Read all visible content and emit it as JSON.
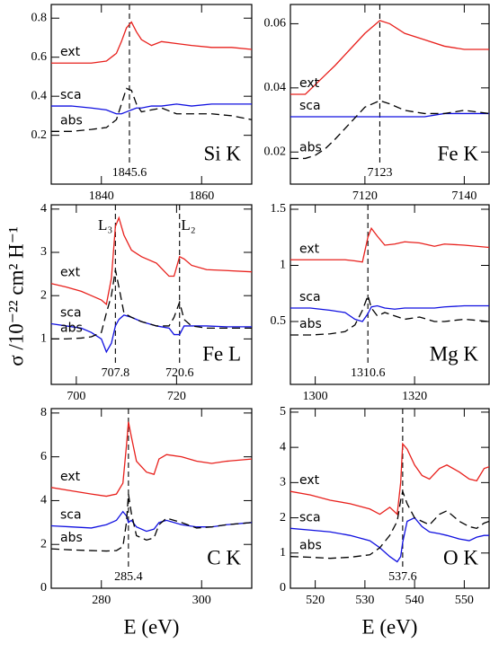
{
  "ylabel": "σ /10⁻²² cm² H⁻¹",
  "chart_data": [
    {
      "type": "line",
      "label": "Si K",
      "xlim": [
        1830,
        1870
      ],
      "xticks": [
        1840,
        1860
      ],
      "ylim": [
        -0.05,
        0.87
      ],
      "yticks": [
        0.2,
        0.4,
        0.6,
        0.8
      ],
      "x": [
        1830,
        1834,
        1838,
        1841,
        1843,
        1844,
        1845,
        1846,
        1847,
        1848,
        1850,
        1852,
        1855,
        1858,
        1862,
        1866,
        1870
      ],
      "series": [
        {
          "name": "ext",
          "color": "#e8201c",
          "dashed": false,
          "values": [
            0.57,
            0.57,
            0.57,
            0.58,
            0.62,
            0.68,
            0.75,
            0.78,
            0.73,
            0.69,
            0.66,
            0.68,
            0.67,
            0.66,
            0.65,
            0.65,
            0.64
          ]
        },
        {
          "name": "sca",
          "color": "#1010e0",
          "dashed": false,
          "values": [
            0.35,
            0.35,
            0.34,
            0.33,
            0.31,
            0.31,
            0.32,
            0.33,
            0.34,
            0.34,
            0.35,
            0.35,
            0.36,
            0.35,
            0.36,
            0.36,
            0.36
          ]
        },
        {
          "name": "abs",
          "color": "#000000",
          "dashed": true,
          "values": [
            0.22,
            0.22,
            0.23,
            0.24,
            0.28,
            0.36,
            0.44,
            0.43,
            0.36,
            0.32,
            0.33,
            0.34,
            0.31,
            0.31,
            0.31,
            0.3,
            0.28
          ]
        }
      ],
      "edges": [
        {
          "value": 1845.6,
          "label": "1845.6"
        }
      ]
    },
    {
      "type": "line",
      "label": "Fe K",
      "xlim": [
        7105,
        7145
      ],
      "xticks": [
        7120,
        7140
      ],
      "ylim": [
        0.01,
        0.066
      ],
      "yticks": [
        0.02,
        0.04,
        0.06
      ],
      "x": [
        7105,
        7108,
        7110,
        7112,
        7114,
        7117,
        7120,
        7123,
        7125,
        7128,
        7132,
        7136,
        7140,
        7145
      ],
      "series": [
        {
          "name": "ext",
          "color": "#e8201c",
          "dashed": false,
          "values": [
            0.038,
            0.038,
            0.041,
            0.044,
            0.047,
            0.052,
            0.057,
            0.061,
            0.06,
            0.057,
            0.055,
            0.053,
            0.052,
            0.052
          ]
        },
        {
          "name": "sca",
          "color": "#1010e0",
          "dashed": false,
          "values": [
            0.031,
            0.031,
            0.031,
            0.031,
            0.031,
            0.031,
            0.031,
            0.031,
            0.031,
            0.031,
            0.031,
            0.032,
            0.032,
            0.032
          ]
        },
        {
          "name": "abs",
          "color": "#000000",
          "dashed": true,
          "values": [
            0.018,
            0.018,
            0.019,
            0.021,
            0.024,
            0.029,
            0.034,
            0.036,
            0.035,
            0.033,
            0.032,
            0.032,
            0.033,
            0.032
          ]
        }
      ],
      "edges": [
        {
          "value": 7123,
          "label": "7123"
        }
      ]
    },
    {
      "type": "line",
      "label": "Fe L",
      "xlim": [
        695,
        735
      ],
      "xticks": [
        700,
        720
      ],
      "ylim": [
        -0.05,
        4.1
      ],
      "yticks": [
        1,
        2,
        3,
        4
      ],
      "x": [
        695,
        698,
        701,
        703,
        705,
        706,
        707,
        707.8,
        708.5,
        709.5,
        711,
        713,
        716,
        718.5,
        719.5,
        720.6,
        721.5,
        723,
        726,
        730,
        735
      ],
      "series": [
        {
          "name": "ext",
          "color": "#e8201c",
          "dashed": false,
          "values": [
            2.28,
            2.2,
            2.1,
            2.0,
            1.9,
            1.8,
            2.4,
            3.6,
            3.8,
            3.4,
            3.05,
            2.9,
            2.75,
            2.45,
            2.45,
            2.9,
            2.85,
            2.7,
            2.6,
            2.58,
            2.55
          ]
        },
        {
          "name": "sca",
          "color": "#1010e0",
          "dashed": false,
          "values": [
            1.35,
            1.3,
            1.25,
            1.15,
            1.0,
            0.7,
            0.9,
            1.3,
            1.45,
            1.55,
            1.5,
            1.4,
            1.3,
            1.25,
            1.1,
            1.1,
            1.3,
            1.3,
            1.3,
            1.28,
            1.28
          ]
        },
        {
          "name": "abs",
          "color": "#000000",
          "dashed": true,
          "values": [
            1.0,
            1.0,
            1.02,
            1.05,
            1.15,
            1.6,
            2.0,
            2.6,
            2.2,
            1.6,
            1.5,
            1.4,
            1.3,
            1.3,
            1.5,
            1.85,
            1.45,
            1.3,
            1.25,
            1.25,
            1.25
          ]
        }
      ],
      "edges": [
        {
          "value": 707.8,
          "label": "707.8",
          "name": "L₃"
        },
        {
          "value": 720.6,
          "label": "720.6",
          "name": "L₂"
        }
      ]
    },
    {
      "type": "line",
      "label": "Mg K",
      "xlim": [
        1295,
        1335
      ],
      "xticks": [
        1300,
        1320
      ],
      "ylim": [
        -0.06,
        1.54
      ],
      "yticks": [
        0.5,
        1,
        1.5
      ],
      "x": [
        1295,
        1299,
        1303,
        1306,
        1308,
        1309.5,
        1310.6,
        1311.3,
        1312.5,
        1314,
        1316,
        1318,
        1321,
        1324,
        1326,
        1330,
        1335
      ],
      "series": [
        {
          "name": "ext",
          "color": "#e8201c",
          "dashed": false,
          "values": [
            1.05,
            1.05,
            1.05,
            1.05,
            1.04,
            1.03,
            1.25,
            1.33,
            1.26,
            1.18,
            1.19,
            1.21,
            1.2,
            1.17,
            1.19,
            1.18,
            1.16
          ]
        },
        {
          "name": "sca",
          "color": "#1010e0",
          "dashed": false,
          "values": [
            0.62,
            0.62,
            0.6,
            0.58,
            0.52,
            0.5,
            0.57,
            0.63,
            0.64,
            0.62,
            0.61,
            0.62,
            0.62,
            0.62,
            0.63,
            0.64,
            0.64
          ]
        },
        {
          "name": "abs",
          "color": "#000000",
          "dashed": true,
          "values": [
            0.38,
            0.38,
            0.39,
            0.41,
            0.47,
            0.6,
            0.73,
            0.62,
            0.55,
            0.58,
            0.55,
            0.52,
            0.54,
            0.5,
            0.5,
            0.52,
            0.5
          ]
        }
      ],
      "edges": [
        {
          "value": 1310.6,
          "label": "1310.6"
        }
      ]
    },
    {
      "type": "line",
      "label": "C K",
      "xlabel": "E (eV)",
      "xlim": [
        270,
        310
      ],
      "xticks": [
        280,
        300
      ],
      "ylim": [
        0,
        8.2
      ],
      "yticks": [
        0,
        2,
        4,
        6,
        8
      ],
      "x": [
        270,
        274,
        278,
        281,
        283,
        284.3,
        285,
        285.4,
        286,
        287,
        289,
        290.5,
        291.5,
        293,
        296,
        299,
        302,
        305,
        310
      ],
      "series": [
        {
          "name": "ext",
          "color": "#e8201c",
          "dashed": false,
          "values": [
            4.6,
            4.45,
            4.3,
            4.2,
            4.3,
            4.8,
            6.5,
            7.6,
            6.9,
            5.8,
            5.3,
            5.2,
            5.9,
            6.1,
            6.0,
            5.8,
            5.7,
            5.8,
            5.9
          ]
        },
        {
          "name": "sca",
          "color": "#1010e0",
          "dashed": false,
          "values": [
            2.85,
            2.8,
            2.75,
            2.9,
            3.1,
            3.5,
            3.3,
            3.0,
            3.1,
            2.8,
            2.6,
            2.7,
            3.0,
            3.1,
            2.9,
            2.8,
            2.8,
            2.9,
            3.0
          ]
        },
        {
          "name": "abs",
          "color": "#000000",
          "dashed": true,
          "values": [
            1.8,
            1.75,
            1.72,
            1.7,
            1.72,
            1.9,
            3.0,
            4.3,
            3.4,
            2.4,
            2.2,
            2.3,
            2.9,
            3.2,
            3.0,
            2.75,
            2.8,
            2.9,
            3.0
          ]
        }
      ],
      "edges": [
        {
          "value": 285.4,
          "label": "285.4"
        }
      ]
    },
    {
      "type": "line",
      "label": "O K",
      "xlabel": "E (eV)",
      "xlim": [
        515,
        555
      ],
      "xticks": [
        520,
        530,
        540,
        550
      ],
      "ylim": [
        0,
        5.1
      ],
      "yticks": [
        0,
        1,
        2,
        3,
        4,
        5
      ],
      "x": [
        515,
        519,
        523,
        527,
        531,
        533,
        535,
        536.5,
        537.2,
        537.6,
        538.5,
        540,
        541.5,
        543,
        545,
        546.5,
        549,
        551,
        552.5,
        554,
        555
      ],
      "series": [
        {
          "name": "ext",
          "color": "#e8201c",
          "dashed": false,
          "values": [
            2.75,
            2.65,
            2.5,
            2.4,
            2.25,
            2.1,
            2.3,
            2.1,
            3.0,
            4.1,
            3.95,
            3.5,
            3.2,
            3.1,
            3.4,
            3.5,
            3.3,
            3.1,
            3.05,
            3.4,
            3.45
          ]
        },
        {
          "name": "sca",
          "color": "#1010e0",
          "dashed": false,
          "values": [
            1.7,
            1.65,
            1.6,
            1.5,
            1.35,
            1.15,
            0.9,
            0.75,
            0.9,
            1.3,
            1.9,
            2.0,
            1.75,
            1.6,
            1.55,
            1.5,
            1.4,
            1.35,
            1.45,
            1.5,
            1.5
          ]
        },
        {
          "name": "abs",
          "color": "#000000",
          "dashed": true,
          "values": [
            0.9,
            0.88,
            0.85,
            0.88,
            0.95,
            1.15,
            1.5,
            1.9,
            2.5,
            2.75,
            2.4,
            2.0,
            1.9,
            1.8,
            2.1,
            2.2,
            1.9,
            1.75,
            1.7,
            1.85,
            1.9
          ]
        }
      ],
      "edges": [
        {
          "value": 537.6,
          "label": "537.6"
        }
      ]
    }
  ]
}
